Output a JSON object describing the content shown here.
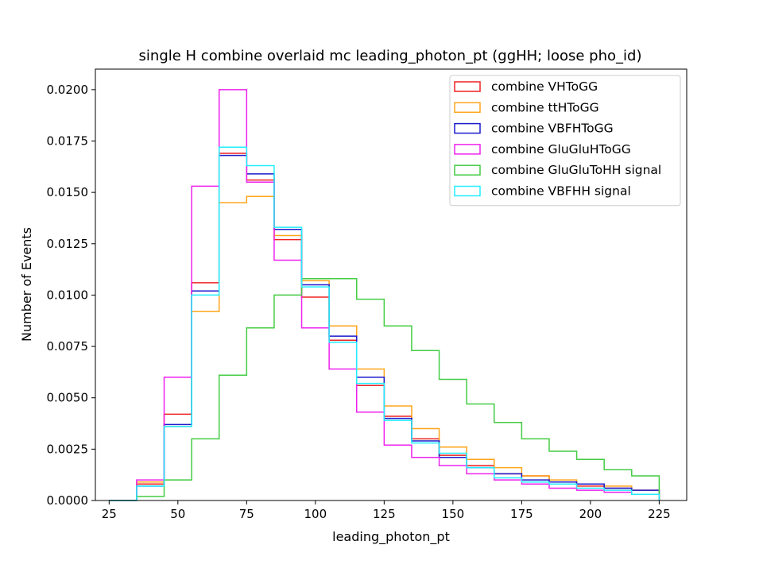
{
  "chart_data": {
    "type": "histogram-step",
    "title": "single H combine overlaid mc leading_photon_pt (ggHH; loose pho_id)",
    "xlabel": "leading_photon_pt",
    "ylabel": "Number of Events",
    "xlim": [
      20,
      235
    ],
    "ylim": [
      0,
      0.021
    ],
    "xticks": [
      25,
      50,
      75,
      100,
      125,
      150,
      175,
      200,
      225
    ],
    "xtick_labels": [
      "25",
      "50",
      "75",
      "100",
      "125",
      "150",
      "175",
      "200",
      "225"
    ],
    "yticks": [
      0,
      0.0025,
      0.005,
      0.0075,
      0.01,
      0.0125,
      0.015,
      0.0175,
      0.02
    ],
    "ytick_labels": [
      "0.0000",
      "0.0025",
      "0.0050",
      "0.0075",
      "0.0100",
      "0.0125",
      "0.0150",
      "0.0175",
      "0.0200"
    ],
    "bin_edges": [
      25,
      35,
      45,
      55,
      65,
      75,
      85,
      95,
      105,
      115,
      125,
      135,
      145,
      155,
      165,
      175,
      185,
      195,
      205,
      215,
      225
    ],
    "grid": false,
    "legend_position": "top-right",
    "series": [
      {
        "name": "combine VHToGG",
        "color": "#ee2222",
        "values": [
          0.0,
          0.0008,
          0.0042,
          0.0106,
          0.0169,
          0.0156,
          0.0127,
          0.0099,
          0.0078,
          0.0056,
          0.0041,
          0.003,
          0.0022,
          0.0017,
          0.0013,
          0.0012,
          0.0009,
          0.0007,
          0.0006,
          0.0005
        ]
      },
      {
        "name": "combine ttHToGG",
        "color": "#ffa51a",
        "values": [
          0.0,
          0.0009,
          0.0036,
          0.0092,
          0.0145,
          0.0148,
          0.0129,
          0.0107,
          0.0085,
          0.0064,
          0.0046,
          0.0035,
          0.0026,
          0.002,
          0.0016,
          0.0012,
          0.001,
          0.0008,
          0.0007,
          0.0005
        ]
      },
      {
        "name": "combine VBFHToGG",
        "color": "#1a1acc",
        "values": [
          0.0,
          0.0007,
          0.0037,
          0.0102,
          0.0168,
          0.0159,
          0.0132,
          0.0105,
          0.008,
          0.006,
          0.004,
          0.0029,
          0.0021,
          0.0016,
          0.0013,
          0.001,
          0.0009,
          0.0008,
          0.0006,
          0.0005
        ]
      },
      {
        "name": "combine GluGluHToGG",
        "color": "#ee22ee",
        "values": [
          0.0,
          0.001,
          0.006,
          0.0153,
          0.02,
          0.0155,
          0.0117,
          0.0084,
          0.0064,
          0.0043,
          0.0027,
          0.0021,
          0.0017,
          0.0013,
          0.001,
          0.0008,
          0.0006,
          0.0005,
          0.0004,
          0.0003
        ]
      },
      {
        "name": "combine GluGluToHH signal",
        "color": "#44cc44",
        "values": [
          0.0,
          0.0002,
          0.001,
          0.003,
          0.0061,
          0.0084,
          0.01,
          0.0108,
          0.0108,
          0.0098,
          0.0085,
          0.0073,
          0.0059,
          0.0047,
          0.0038,
          0.003,
          0.0024,
          0.002,
          0.0015,
          0.0012
        ]
      },
      {
        "name": "combine VBFHH signal",
        "color": "#22eeff",
        "values": [
          0.0,
          0.0007,
          0.0036,
          0.01,
          0.0172,
          0.0163,
          0.0133,
          0.0104,
          0.0077,
          0.0057,
          0.0039,
          0.0028,
          0.0023,
          0.0016,
          0.0011,
          0.0009,
          0.0008,
          0.0006,
          0.0005,
          0.0003
        ]
      }
    ]
  }
}
